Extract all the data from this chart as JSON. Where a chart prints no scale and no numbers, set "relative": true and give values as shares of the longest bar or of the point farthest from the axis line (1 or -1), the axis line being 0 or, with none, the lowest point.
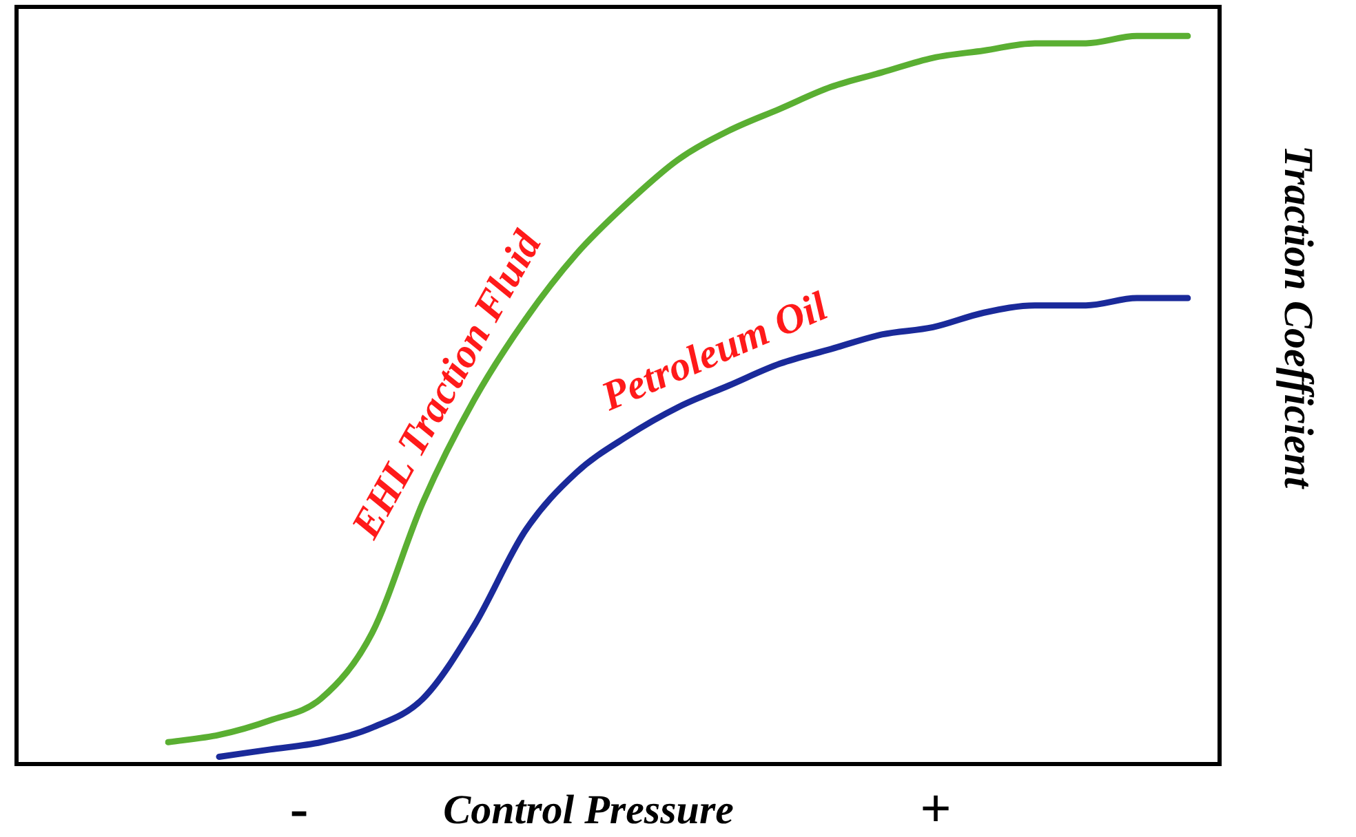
{
  "chart_data": {
    "type": "line",
    "relative": true,
    "xlabel": "Control Pressure",
    "ylabel": "Traction Coefficient",
    "categories": [
      null,
      null,
      null,
      null,
      null,
      null,
      null,
      null,
      null,
      null,
      null,
      null,
      null,
      null,
      null,
      null,
      null,
      null,
      null,
      null,
      null
    ],
    "series": [
      {
        "name": "EHL Traction Fluid",
        "color": "#5aaf32",
        "values": [
          0.03,
          0.04,
          0.06,
          0.09,
          0.18,
          0.36,
          0.5,
          0.61,
          0.7,
          0.77,
          0.83,
          0.87,
          0.9,
          0.93,
          0.95,
          0.97,
          0.98,
          0.99,
          0.99,
          1,
          1
        ]
      },
      {
        "name": "Petroleum Oil",
        "color": "#1a2a9a",
        "values": [
          null,
          0.01,
          0.02,
          0.03,
          0.05,
          0.09,
          0.19,
          0.32,
          0.4,
          0.45,
          0.49,
          0.52,
          0.55,
          0.57,
          0.59,
          0.6,
          0.62,
          0.63,
          0.63,
          0.64,
          0.64
        ]
      }
    ],
    "annotations": [
      "-",
      "+"
    ]
  }
}
